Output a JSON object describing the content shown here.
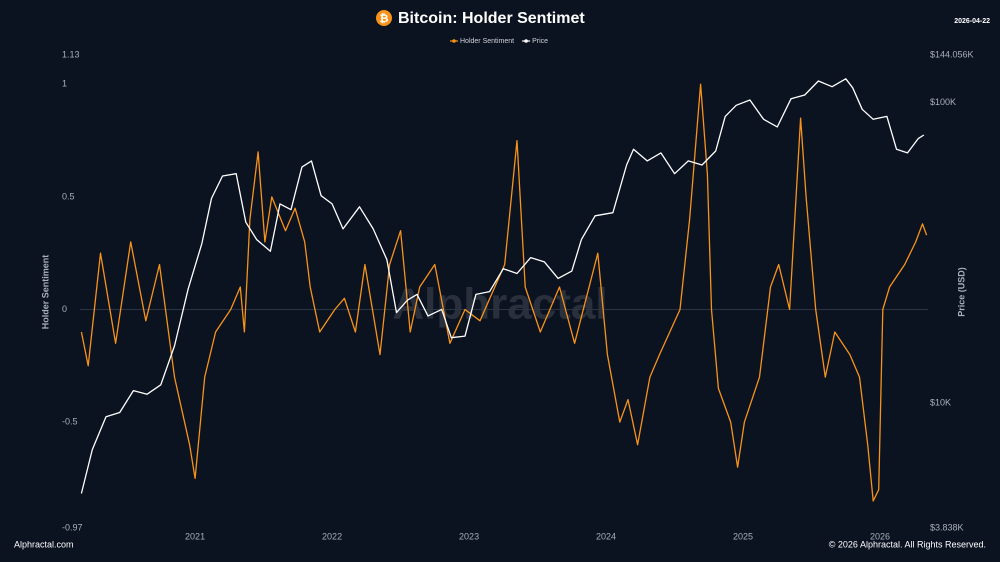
{
  "chart_data": {
    "type": "line",
    "title": "Bitcoin: Holder Sentimet",
    "date": "2026-04-22",
    "watermark": "Alphractal",
    "footer_left": "Alphractal.com",
    "footer_right": "© 2026 Alphractal. All Rights Reserved.",
    "ylabel": "Holder Sentiment",
    "y2label": "Price (USD)",
    "xlim": [
      2020.16,
      2026.35
    ],
    "xticks": [
      2021,
      2022,
      2023,
      2024,
      2025,
      2026
    ],
    "ylim": [
      -0.97,
      1.13
    ],
    "yticks": [
      -0.97,
      -0.5,
      0,
      0.5,
      1,
      1.13
    ],
    "y2lim": [
      3838,
      144056
    ],
    "y2log": true,
    "y2ticks": [
      {
        "value": 3838,
        "label": "$3.838K"
      },
      {
        "value": 10000,
        "label": "$10K"
      },
      {
        "value": 100000,
        "label": "$100K"
      },
      {
        "value": 144056,
        "label": "$144.056K"
      }
    ],
    "series": [
      {
        "name": "Holder Sentiment",
        "color": "#f7931a",
        "x": [
          2020.17,
          2020.22,
          2020.31,
          2020.42,
          2020.53,
          2020.64,
          2020.74,
          2020.85,
          2020.96,
          2021.0,
          2021.07,
          2021.15,
          2021.26,
          2021.33,
          2021.36,
          2021.4,
          2021.46,
          2021.51,
          2021.56,
          2021.66,
          2021.73,
          2021.8,
          2021.84,
          2021.91,
          2022.02,
          2022.09,
          2022.17,
          2022.24,
          2022.35,
          2022.42,
          2022.5,
          2022.57,
          2022.64,
          2022.75,
          2022.86,
          2022.97,
          2023.08,
          2023.26,
          2023.35,
          2023.41,
          2023.52,
          2023.66,
          2023.77,
          2023.94,
          2024.01,
          2024.1,
          2024.16,
          2024.23,
          2024.32,
          2024.39,
          2024.54,
          2024.61,
          2024.69,
          2024.74,
          2024.77,
          2024.82,
          2024.91,
          2024.96,
          2025.01,
          2025.12,
          2025.2,
          2025.26,
          2025.34,
          2025.42,
          2025.46,
          2025.53,
          2025.6,
          2025.67,
          2025.78,
          2025.85,
          2025.91,
          2025.95,
          2025.99,
          2026.02,
          2026.07,
          2026.18,
          2026.26,
          2026.31,
          2026.34
        ],
        "values": [
          -0.1,
          -0.25,
          0.25,
          -0.15,
          0.3,
          -0.05,
          0.2,
          -0.3,
          -0.6,
          -0.75,
          -0.3,
          -0.1,
          0.0,
          0.1,
          -0.1,
          0.4,
          0.7,
          0.3,
          0.5,
          0.35,
          0.45,
          0.3,
          0.1,
          -0.1,
          0.0,
          0.05,
          -0.1,
          0.2,
          -0.2,
          0.2,
          0.35,
          -0.1,
          0.1,
          0.2,
          -0.15,
          0.0,
          -0.05,
          0.2,
          0.75,
          0.1,
          -0.1,
          0.1,
          -0.15,
          0.25,
          -0.2,
          -0.5,
          -0.4,
          -0.6,
          -0.3,
          -0.2,
          0.0,
          0.4,
          1.0,
          0.6,
          0.0,
          -0.35,
          -0.5,
          -0.7,
          -0.5,
          -0.3,
          0.1,
          0.2,
          0.0,
          0.85,
          0.5,
          0.0,
          -0.3,
          -0.1,
          -0.2,
          -0.3,
          -0.6,
          -0.85,
          -0.8,
          0.0,
          0.1,
          0.2,
          0.3,
          0.38,
          0.33
        ]
      },
      {
        "name": "Price",
        "color": "#ffffff",
        "axis": "y2",
        "x": [
          2020.17,
          2020.25,
          2020.35,
          2020.45,
          2020.55,
          2020.65,
          2020.75,
          2020.85,
          2020.95,
          2021.05,
          2021.12,
          2021.2,
          2021.3,
          2021.37,
          2021.45,
          2021.55,
          2021.62,
          2021.7,
          2021.78,
          2021.85,
          2021.92,
          2022.0,
          2022.08,
          2022.2,
          2022.3,
          2022.4,
          2022.47,
          2022.55,
          2022.62,
          2022.7,
          2022.8,
          2022.87,
          2022.97,
          2023.05,
          2023.15,
          2023.25,
          2023.35,
          2023.45,
          2023.55,
          2023.65,
          2023.75,
          2023.82,
          2023.92,
          2024.05,
          2024.15,
          2024.2,
          2024.3,
          2024.4,
          2024.5,
          2024.6,
          2024.7,
          2024.8,
          2024.87,
          2024.95,
          2025.05,
          2025.15,
          2025.25,
          2025.35,
          2025.45,
          2025.55,
          2025.65,
          2025.75,
          2025.8,
          2025.87,
          2025.95,
          2026.05,
          2026.12,
          2026.2,
          2026.28,
          2026.32
        ],
        "values": [
          5000,
          7000,
          9000,
          9300,
          11000,
          10700,
          11500,
          15500,
          24000,
          34000,
          48000,
          57000,
          58000,
          40000,
          35000,
          32000,
          46000,
          44000,
          61000,
          64000,
          49000,
          46000,
          38000,
          45000,
          38000,
          30000,
          20000,
          22000,
          23000,
          19500,
          20500,
          16500,
          16700,
          23000,
          23500,
          28000,
          27000,
          30500,
          29500,
          26000,
          27500,
          35000,
          42000,
          43000,
          62000,
          70000,
          64000,
          68000,
          58000,
          64000,
          62000,
          69000,
          90000,
          98000,
          102000,
          88000,
          83000,
          103000,
          106000,
          118000,
          113000,
          120000,
          112000,
          95000,
          88000,
          90000,
          70000,
          68000,
          76000,
          78000
        ]
      }
    ]
  }
}
